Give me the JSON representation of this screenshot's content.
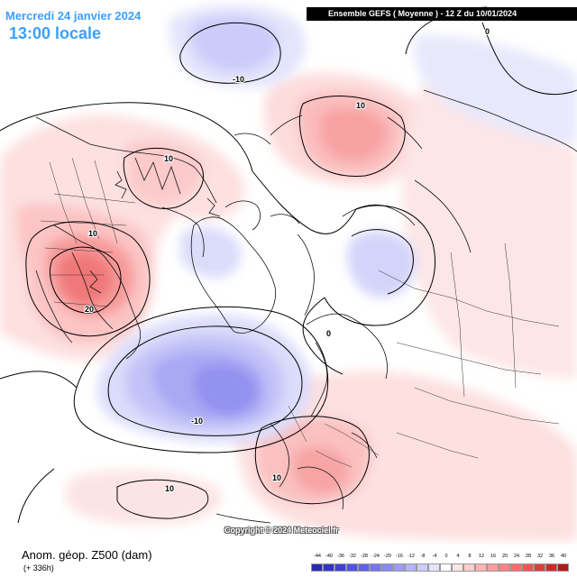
{
  "header": {
    "date": "Mercredi 24 janvier 2024",
    "time": "13:00 locale",
    "model_run": "Ensemble GEFS  ( Moyenne )  -  12 Z du 10/01/2024"
  },
  "footer": {
    "title": "Anom. géop. Z500 (dam)",
    "subtitle": "(+ 336h)",
    "copyright": "Copyright © 2024 Meteociel.fr"
  },
  "legend": {
    "values": [
      "-44",
      "-40",
      "-36",
      "-32",
      "-28",
      "-24",
      "-20",
      "-16",
      "-12",
      "-8",
      "-4",
      "0",
      "4",
      "8",
      "12",
      "16",
      "20",
      "24",
      "28",
      "32",
      "36",
      "40"
    ],
    "colors": [
      "#2a2ab0",
      "#3434c8",
      "#4040d8",
      "#5050e8",
      "#6060f0",
      "#7474f4",
      "#8888f6",
      "#9c9cf8",
      "#b4b4fa",
      "#ccccfc",
      "#e4e4fe",
      "#ffffff",
      "#ffe4e4",
      "#ffcccc",
      "#ffb4b4",
      "#ff9c9c",
      "#ff8484",
      "#f86c6c",
      "#f05454",
      "#e03c3c",
      "#d02828",
      "#b81818"
    ]
  },
  "contour_labels": {
    "pacific_low": "-10",
    "canada_high": "10",
    "us_high_1": "10",
    "us_high_2": "20",
    "siberia_high": "10",
    "atlantic_low": "-10",
    "atlantic_south_high": "10",
    "europe_high": "10",
    "zero_ne": "0",
    "zero_center": "0"
  }
}
